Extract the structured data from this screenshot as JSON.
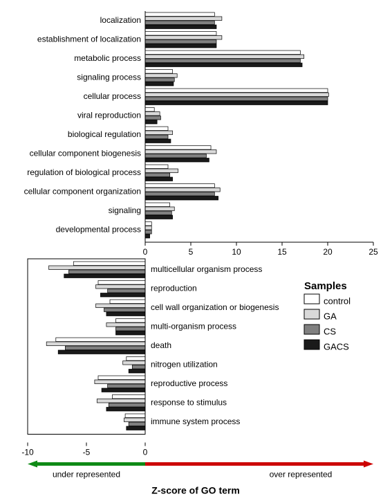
{
  "top_chart": {
    "type": "bar",
    "xlim": [
      0,
      25
    ],
    "xticks": [
      0,
      5,
      10,
      15,
      20,
      25
    ],
    "tick_fontsize": 12,
    "label_fontsize": 12,
    "bar_height": 5.5,
    "bar_gap": 0.5,
    "group_gap": 4,
    "series_colors": {
      "control": "#ffffff",
      "GA": "#d9d9d9",
      "CS": "#808080",
      "GACS": "#1a1a1a"
    },
    "stroke_color": "#000000",
    "categories": [
      {
        "label": "localization",
        "values": {
          "control": 7.6,
          "GA": 8.4,
          "CS": 7.6,
          "GACS": 7.8
        }
      },
      {
        "label": "establishment of localization",
        "values": {
          "control": 7.8,
          "GA": 8.4,
          "CS": 7.8,
          "GACS": 7.8
        }
      },
      {
        "label": "metabolic process",
        "values": {
          "control": 17.0,
          "GA": 17.4,
          "CS": 17.0,
          "GACS": 17.2
        }
      },
      {
        "label": "signaling process",
        "values": {
          "control": 3.0,
          "GA": 3.5,
          "CS": 3.2,
          "GACS": 3.1
        }
      },
      {
        "label": "cellular process",
        "values": {
          "control": 20.0,
          "GA": 20.1,
          "CS": 20.0,
          "GACS": 20.0
        }
      },
      {
        "label": "viral reproduction",
        "values": {
          "control": 1.0,
          "GA": 1.6,
          "CS": 1.7,
          "GACS": 1.3
        }
      },
      {
        "label": "biological regulation",
        "values": {
          "control": 2.5,
          "GA": 3.0,
          "CS": 2.5,
          "GACS": 2.8
        }
      },
      {
        "label": "cellular component biogenesis",
        "values": {
          "control": 7.2,
          "GA": 7.8,
          "CS": 6.7,
          "GACS": 7.0
        }
      },
      {
        "label": "regulation of biological process",
        "values": {
          "control": 2.5,
          "GA": 3.6,
          "CS": 2.7,
          "GACS": 3.0
        }
      },
      {
        "label": "cellular component organization",
        "values": {
          "control": 7.6,
          "GA": 8.2,
          "CS": 7.6,
          "GACS": 8.0
        }
      },
      {
        "label": "signaling",
        "values": {
          "control": 2.7,
          "GA": 3.2,
          "CS": 2.9,
          "GACS": 3.0
        }
      },
      {
        "label": "developmental process",
        "values": {
          "control": 0.7,
          "GA": 0.7,
          "CS": 0.7,
          "GACS": 0.5
        }
      }
    ]
  },
  "bottom_chart": {
    "type": "bar",
    "xlim": [
      -10,
      0
    ],
    "xticks": [
      -10,
      -5,
      0
    ],
    "tick_fontsize": 12,
    "label_fontsize": 12,
    "bar_height": 5.5,
    "bar_gap": 0.5,
    "group_gap": 4,
    "series_colors": {
      "control": "#ffffff",
      "GA": "#d9d9d9",
      "CS": "#808080",
      "GACS": "#1a1a1a"
    },
    "stroke_color": "#000000",
    "categories": [
      {
        "label": "multicellular organism process",
        "values": {
          "control": -6.1,
          "GA": -8.2,
          "CS": -6.5,
          "GACS": -6.9
        }
      },
      {
        "label": "reproduction",
        "values": {
          "control": -4.0,
          "GA": -4.2,
          "CS": -3.2,
          "GACS": -3.8
        }
      },
      {
        "label": "cell wall organization or biogenesis",
        "values": {
          "control": -3.0,
          "GA": -4.2,
          "CS": -3.5,
          "GACS": -3.3
        }
      },
      {
        "label": "multi-organism process",
        "values": {
          "control": -2.5,
          "GA": -3.3,
          "CS": -2.5,
          "GACS": -2.5
        }
      },
      {
        "label": "death",
        "values": {
          "control": -7.6,
          "GA": -8.4,
          "CS": -6.8,
          "GACS": -7.4
        }
      },
      {
        "label": "nitrogen utilization",
        "values": {
          "control": -1.6,
          "GA": -1.9,
          "CS": -1.1,
          "GACS": -1.4
        }
      },
      {
        "label": "reproductive process",
        "values": {
          "control": -4.0,
          "GA": -4.3,
          "CS": -3.2,
          "GACS": -3.7
        }
      },
      {
        "label": "response to stimulus",
        "values": {
          "control": -2.8,
          "GA": -4.1,
          "CS": -3.1,
          "GACS": -3.3
        }
      },
      {
        "label": "immune system process",
        "values": {
          "control": -1.7,
          "GA": -1.8,
          "CS": -1.4,
          "GACS": -1.6
        }
      }
    ]
  },
  "legend": {
    "title": "Samples",
    "title_fontsize": 15,
    "label_fontsize": 13,
    "items": [
      {
        "key": "control",
        "label": "control",
        "fill": "#ffffff"
      },
      {
        "key": "GA",
        "label": "GA",
        "fill": "#d9d9d9"
      },
      {
        "key": "CS",
        "label": "CS",
        "fill": "#808080"
      },
      {
        "key": "GACS",
        "label": "GACS",
        "fill": "#1a1a1a"
      }
    ],
    "box_stroke": "#000000"
  },
  "axis_arrow": {
    "under_color": "#0f8a16",
    "over_color": "#cc0000",
    "under_label": "under represented",
    "over_label": "over represented",
    "arrow_height": 10,
    "label_fontsize": 12
  },
  "global_xaxis": {
    "title": "Z-score of GO term",
    "title_fontsize": 14,
    "title_weight": "bold",
    "xlim": [
      -10,
      25
    ],
    "xticks": [
      -10,
      -5,
      0
    ]
  },
  "background_color": "#ffffff"
}
